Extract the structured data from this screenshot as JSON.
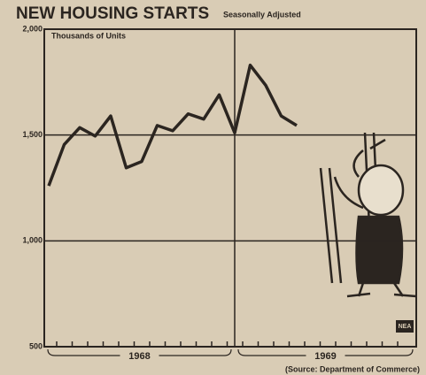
{
  "chart_data": {
    "type": "line",
    "title": "NEW HOUSING STARTS",
    "subtitle": "Seasonally Adjusted",
    "y_label": "Thousands of Units",
    "categories": [
      null,
      null,
      null,
      null,
      null,
      null,
      null,
      null,
      null,
      null,
      null,
      null,
      null,
      null,
      null,
      null,
      null
    ],
    "series": [
      {
        "name": null,
        "color": "#2b2520",
        "values": [
          1260,
          1455,
          1535,
          1495,
          1590,
          1345,
          1375,
          1545,
          1520,
          1600,
          1575,
          1690,
          1510,
          1830,
          1735,
          1590,
          1545
        ]
      }
    ],
    "year_labels": [
      "1968",
      "1969"
    ],
    "ylim": [
      500,
      2000
    ],
    "yticks": [
      500,
      {
        "value": 1000,
        "label": "1,000"
      },
      {
        "value": 1500,
        "label": "1,500"
      },
      {
        "value": 2000,
        "label": "2,000"
      }
    ],
    "grid": true,
    "source": "(Source: Department of Commerce)",
    "badge": "NEA"
  }
}
